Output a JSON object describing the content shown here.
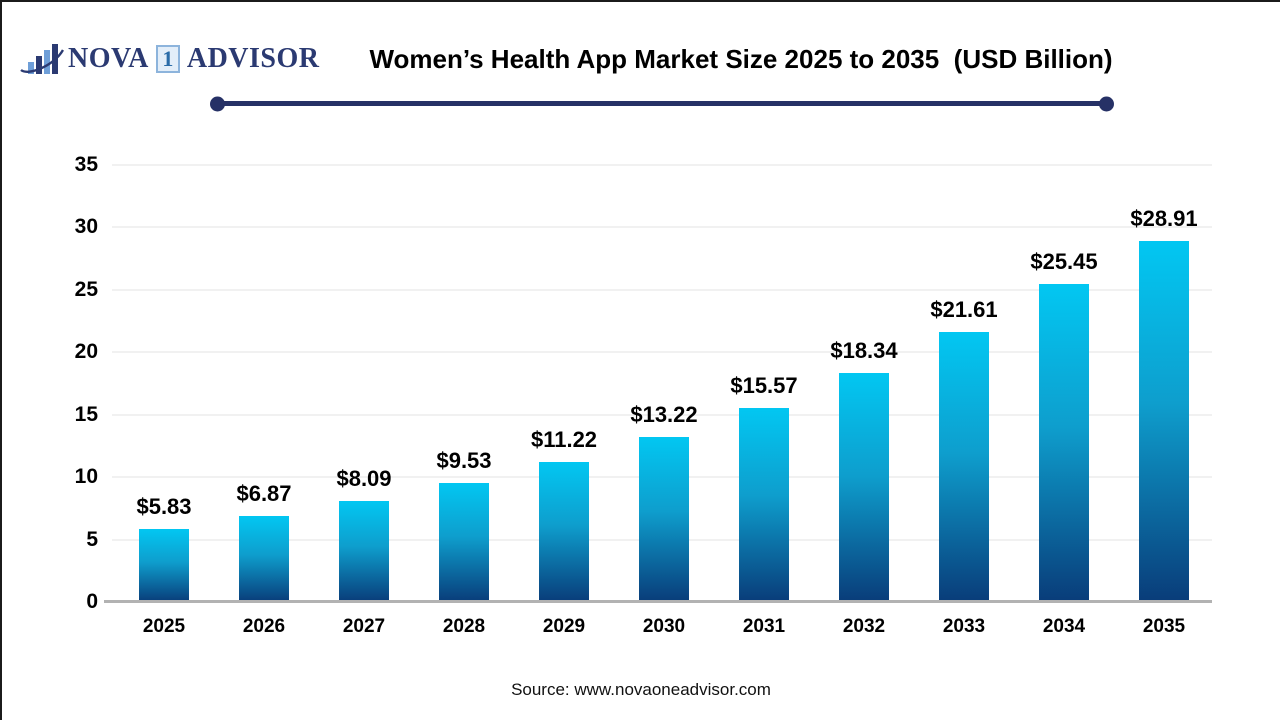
{
  "header": {
    "logo": {
      "icon": "bar-chart-swoosh-icon",
      "word_left": "NOVA",
      "boxed_digit": "1",
      "word_right": "ADVISOR"
    },
    "title": "Women’s Health App Market Size 2025 to 2035  (USD Billion)"
  },
  "chart_data": {
    "type": "bar",
    "title": "Women’s Health App Market Size 2025 to 2035 (USD Billion)",
    "categories": [
      "2025",
      "2026",
      "2027",
      "2028",
      "2029",
      "2030",
      "2031",
      "2032",
      "2033",
      "2034",
      "2035"
    ],
    "values": [
      5.83,
      6.87,
      8.09,
      9.53,
      11.22,
      13.22,
      15.57,
      18.34,
      21.61,
      25.45,
      28.91
    ],
    "value_labels": [
      "$5.83",
      "$6.87",
      "$8.09",
      "$9.53",
      "$11.22",
      "$13.22",
      "$15.57",
      "$18.34",
      "$21.61",
      "$25.45",
      "$28.91"
    ],
    "xlabel": "",
    "ylabel": "",
    "ylim": [
      0,
      35
    ],
    "ytick_step": 5,
    "grid": true,
    "legend": "none",
    "unit": "USD Billion",
    "bar_gradient_top": "#02c7f2",
    "bar_gradient_bottom": "#093c79"
  },
  "footer": {
    "source": "Source: www.novaoneadvisor.com"
  },
  "colors": {
    "accent_navy": "#263166",
    "logo_navy": "#2b3a72",
    "logo_light_blue": "#6f9fd8",
    "grid": "#f1f1f1",
    "axis": "#b2b2b2",
    "text": "#000000"
  }
}
